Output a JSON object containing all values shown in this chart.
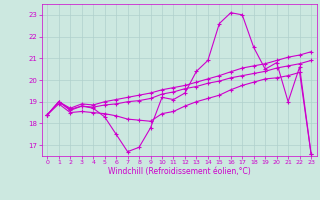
{
  "xlabel": "Windchill (Refroidissement éolien,°C)",
  "xlim": [
    -0.5,
    23.5
  ],
  "ylim": [
    16.5,
    23.5
  ],
  "yticks": [
    17,
    18,
    19,
    20,
    21,
    22,
    23
  ],
  "xticks": [
    0,
    1,
    2,
    3,
    4,
    5,
    6,
    7,
    8,
    9,
    10,
    11,
    12,
    13,
    14,
    15,
    16,
    17,
    18,
    19,
    20,
    21,
    22,
    23
  ],
  "background_color": "#cce8e0",
  "grid_color": "#b0d0cc",
  "line_color": "#cc00cc",
  "series": {
    "actual": [
      18.4,
      19.0,
      18.6,
      18.8,
      18.7,
      18.3,
      17.5,
      16.7,
      16.9,
      17.8,
      19.2,
      19.1,
      19.4,
      20.4,
      20.9,
      22.6,
      23.1,
      23.0,
      21.5,
      20.5,
      20.8,
      19.0,
      20.6,
      16.6
    ],
    "line_low": [
      18.4,
      18.9,
      18.5,
      18.55,
      18.5,
      18.45,
      18.35,
      18.2,
      18.15,
      18.1,
      18.45,
      18.55,
      18.8,
      19.0,
      19.15,
      19.3,
      19.55,
      19.75,
      19.9,
      20.05,
      20.1,
      20.2,
      20.35,
      16.6
    ],
    "line_mid": [
      18.4,
      19.0,
      18.65,
      18.8,
      18.75,
      18.85,
      18.9,
      19.0,
      19.05,
      19.15,
      19.35,
      19.45,
      19.6,
      19.7,
      19.85,
      19.95,
      20.1,
      20.2,
      20.3,
      20.4,
      20.55,
      20.65,
      20.75,
      20.9
    ],
    "line_high": [
      18.4,
      19.0,
      18.7,
      18.9,
      18.85,
      19.0,
      19.1,
      19.2,
      19.3,
      19.4,
      19.55,
      19.65,
      19.75,
      19.9,
      20.05,
      20.2,
      20.38,
      20.55,
      20.65,
      20.75,
      20.9,
      21.05,
      21.15,
      21.3
    ]
  }
}
